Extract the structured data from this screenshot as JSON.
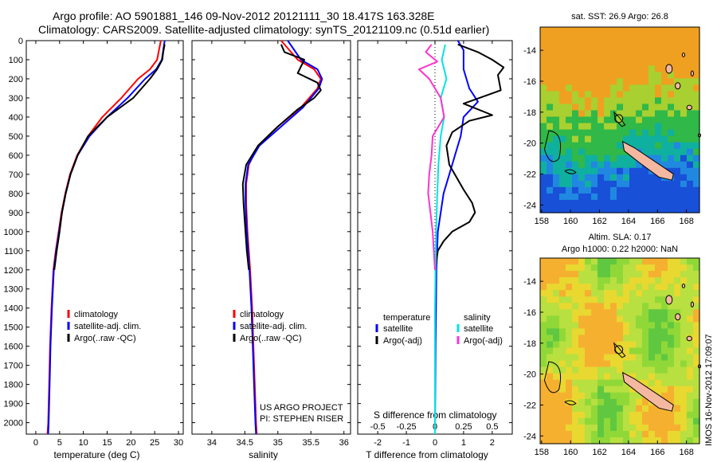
{
  "header": {
    "line1": "Argo profile: AO 5901881_146 09-Nov-2012 20121111_30 18.417S 163.328E",
    "line2": "Climatology: CARS2009. Satellite-adjusted climatology: synTS_20121109.nc (0.51d earlier)"
  },
  "colors": {
    "climatology": "#ff0000",
    "satellite": "#0000ff",
    "argo": "#000000",
    "salinity_satellite": "#00e5e5",
    "salinity_argo": "#ff33cc"
  },
  "chart_data": [
    {
      "type": "line",
      "name": "temperature-panel",
      "xlabel": "temperature (deg C)",
      "xlim": [
        -2,
        31
      ],
      "ylim": [
        2060,
        0
      ],
      "xticks": [
        "0",
        "5",
        "10",
        "15",
        "20",
        "25",
        "30"
      ],
      "xtick_values": [
        0,
        5,
        10,
        15,
        20,
        25,
        30
      ],
      "yticks": [
        "0",
        "100",
        "200",
        "300",
        "400",
        "500",
        "600",
        "700",
        "800",
        "900",
        "1000",
        "1100",
        "1200",
        "1300",
        "1400",
        "1500",
        "1600",
        "1700",
        "1800",
        "1900",
        "2000"
      ],
      "ytick_values": [
        0,
        100,
        200,
        300,
        400,
        500,
        600,
        700,
        800,
        900,
        1000,
        1100,
        1200,
        1300,
        1400,
        1500,
        1600,
        1700,
        1800,
        1900,
        2000
      ],
      "legend": [
        "climatology",
        "satellite-adj. clim.",
        "Argo(..raw -QC)"
      ],
      "series": [
        {
          "name": "climatology",
          "color": "climatology",
          "x": [
            26.3,
            25.5,
            24.0,
            21.5,
            18.0,
            14.0,
            11.0,
            8.7,
            7.2,
            6.2,
            5.4,
            4.8,
            4.2,
            3.7,
            3.3,
            3.0,
            2.8,
            2.6,
            2.45
          ],
          "y": [
            0,
            100,
            150,
            200,
            300,
            400,
            500,
            600,
            700,
            800,
            900,
            1000,
            1100,
            1200,
            1400,
            1600,
            1800,
            2000,
            2060
          ]
        },
        {
          "name": "satellite-adj. clim.",
          "color": "satellite",
          "x": [
            27.1,
            26.5,
            25.3,
            23.0,
            19.3,
            15.0,
            11.3,
            8.8,
            7.3,
            6.3,
            5.5,
            4.9,
            4.3,
            3.8,
            3.4,
            3.1,
            2.9,
            2.7,
            2.6
          ],
          "y": [
            0,
            100,
            150,
            200,
            300,
            400,
            500,
            600,
            700,
            800,
            900,
            1000,
            1100,
            1200,
            1400,
            1600,
            1800,
            2000,
            2060
          ]
        },
        {
          "name": "Argo(..raw -QC)",
          "color": "argo",
          "x": [
            27.1,
            26.8,
            26.6,
            25.5,
            24.0,
            20.5,
            15.0,
            11.0,
            8.8,
            7.3,
            6.3,
            5.5,
            5.0,
            4.4,
            3.9
          ],
          "y": [
            20,
            60,
            100,
            150,
            200,
            300,
            400,
            500,
            600,
            700,
            800,
            900,
            1000,
            1100,
            1200
          ]
        }
      ]
    },
    {
      "type": "line",
      "name": "salinity-panel",
      "xlabel": "salinity",
      "xlim": [
        33.7,
        36.1
      ],
      "ylim": [
        2060,
        0
      ],
      "xticks": [
        "34",
        "34.5",
        "35",
        "35.5",
        "36"
      ],
      "xtick_values": [
        34,
        34.5,
        35,
        35.5,
        36
      ],
      "legend": [
        "climatology",
        "satellite-adj. clim.",
        "Argo(..raw -QC)"
      ],
      "annotation_lines": [
        "US ARGO PROJECT",
        "PI: STEPHEN RISER"
      ],
      "series": [
        {
          "name": "climatology",
          "color": "climatology",
          "x": [
            35.05,
            35.3,
            35.55,
            35.65,
            35.6,
            35.35,
            35.0,
            34.7,
            34.56,
            34.52,
            34.52,
            34.54,
            34.56,
            34.58,
            34.61,
            34.63,
            34.65,
            34.67,
            34.68
          ],
          "y": [
            0,
            100,
            150,
            200,
            250,
            350,
            450,
            550,
            650,
            750,
            850,
            1000,
            1100,
            1200,
            1400,
            1600,
            1800,
            2000,
            2060
          ]
        },
        {
          "name": "satellite-adj. clim.",
          "color": "satellite",
          "x": [
            35.15,
            35.35,
            35.6,
            35.67,
            35.62,
            35.38,
            35.05,
            34.72,
            34.55,
            34.51,
            34.51,
            34.53,
            34.55,
            34.57,
            34.6,
            34.62,
            34.64,
            34.66,
            34.67
          ],
          "y": [
            0,
            100,
            150,
            200,
            250,
            350,
            450,
            550,
            650,
            750,
            850,
            1000,
            1100,
            1200,
            1400,
            1600,
            1800,
            2000,
            2060
          ]
        },
        {
          "name": "Argo(..raw -QC)",
          "color": "argo",
          "x": [
            35.05,
            35.1,
            35.4,
            35.3,
            35.6,
            35.65,
            35.55,
            35.3,
            35.0,
            34.7,
            34.52,
            34.47,
            34.48,
            34.5,
            34.53,
            34.56
          ],
          "y": [
            20,
            60,
            100,
            170,
            220,
            260,
            300,
            360,
            450,
            550,
            650,
            750,
            850,
            950,
            1100,
            1200
          ]
        }
      ]
    },
    {
      "type": "line",
      "name": "difference-panel",
      "xlabel": "T difference from climatology",
      "xlabel_top": "S difference from climatology",
      "xlim": [
        -2.7,
        2.7
      ],
      "ylim": [
        2060,
        0
      ],
      "xticks": [
        "-2",
        "-1",
        "0",
        "1",
        "2"
      ],
      "xtick_values": [
        -2,
        -1,
        0,
        1,
        2
      ],
      "sticks": [
        "-0.5",
        "-0.25",
        "0",
        "0.25",
        "0.5"
      ],
      "stick_values": [
        -0.5,
        -0.25,
        0,
        0.25,
        0.5
      ],
      "legend_headers": [
        "temperature",
        "salinity"
      ],
      "legend_temperature": [
        "satellite",
        "Argo(-adj)"
      ],
      "legend_salinity": [
        "satellite",
        "Argo(-adj)"
      ],
      "series": [
        {
          "name": "temperature satellite",
          "color": "satellite",
          "x": [
            0.8,
            1.0,
            1.0,
            1.2,
            1.5,
            1.0,
            0.9,
            0.7,
            0.5,
            0.3,
            0.2,
            0.1,
            0.05,
            0.02,
            0.0
          ],
          "y": [
            0,
            50,
            150,
            250,
            320,
            400,
            500,
            600,
            700,
            800,
            900,
            1000,
            1200,
            1600,
            2060
          ]
        },
        {
          "name": "temperature Argo(-adj)",
          "color": "argo",
          "x": [
            0.8,
            1.5,
            2.0,
            2.4,
            2.2,
            2.3,
            1.0,
            2.0,
            1.2,
            0.6,
            0.4,
            0.5,
            1.0,
            1.3,
            1.4,
            1.2,
            0.6,
            0.3,
            0.1,
            0.0
          ],
          "y": [
            20,
            60,
            100,
            140,
            180,
            260,
            330,
            390,
            420,
            480,
            550,
            650,
            780,
            850,
            900,
            950,
            1000,
            1050,
            1100,
            1200
          ]
        },
        {
          "name": "salinity satellite",
          "color": "salinity_satellite",
          "x": [
            0.09,
            0.06,
            0.1,
            0.05,
            0.08,
            0.05,
            0.03,
            0.02,
            0.01,
            0.0,
            0.0
          ],
          "y": [
            20,
            100,
            200,
            300,
            400,
            500,
            650,
            800,
            1000,
            1400,
            2060
          ]
        },
        {
          "name": "salinity Argo(-adj)",
          "color": "salinity_argo",
          "x": [
            -0.03,
            -0.08,
            0.02,
            -0.14,
            -0.05,
            0.05,
            0.08,
            -0.02,
            -0.03,
            -0.05,
            -0.06,
            -0.04,
            -0.02,
            0.0
          ],
          "y": [
            20,
            60,
            110,
            150,
            200,
            300,
            400,
            500,
            600,
            700,
            800,
            900,
            1000,
            1200
          ]
        }
      ]
    },
    {
      "type": "heatmap",
      "name": "sst-map",
      "title_lines": [
        "sat. SST: 26.9  Argo: 26.8"
      ],
      "xticks": [
        "158",
        "160",
        "162",
        "164",
        "166",
        "168"
      ],
      "xtick_values": [
        158,
        160,
        162,
        164,
        166,
        168
      ],
      "yticks": [
        "-14",
        "-16",
        "-18",
        "-20",
        "-22",
        "-24"
      ],
      "ytick_values": [
        -14,
        -16,
        -18,
        -20,
        -22,
        -24
      ],
      "xlim": [
        157.9,
        168.9
      ],
      "ylim": [
        -24.5,
        -12.5
      ],
      "argo_position": [
        163.328,
        -18.417
      ]
    },
    {
      "type": "heatmap",
      "name": "sla-map",
      "title_lines": [
        "Altim. SLA: 0.17",
        "Argo h1000: 0.22 h2000: NaN"
      ],
      "xticks": [
        "158",
        "160",
        "162",
        "164",
        "166",
        "168"
      ],
      "xtick_values": [
        158,
        160,
        162,
        164,
        166,
        168
      ],
      "yticks": [
        "-14",
        "-16",
        "-18",
        "-20",
        "-22",
        "-24"
      ],
      "ytick_values": [
        -14,
        -16,
        -18,
        -20,
        -22,
        -24
      ],
      "xlim": [
        157.9,
        168.9
      ],
      "ylim": [
        -24.5,
        -12.5
      ],
      "argo_position": [
        163.328,
        -18.417
      ]
    }
  ],
  "side_credit": "IMOS 16-Nov-2012 17:09:07"
}
